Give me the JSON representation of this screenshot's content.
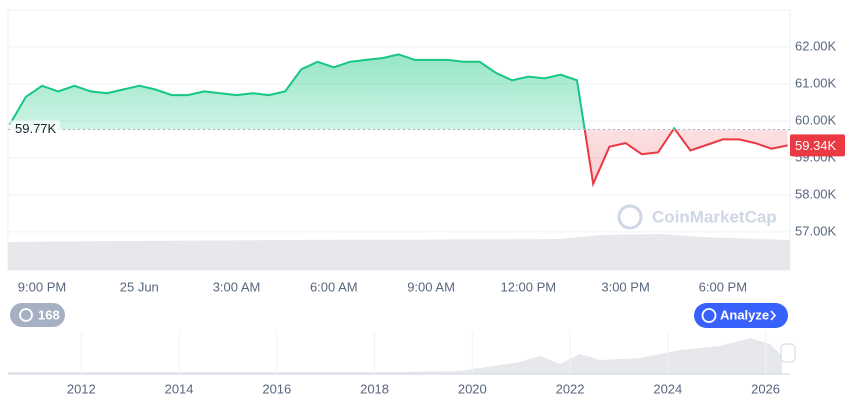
{
  "chart_data": [
    {
      "type": "line",
      "categories": [
        null,
        null,
        "9:00 PM",
        null,
        null,
        null,
        null,
        null,
        "25 Jun",
        null,
        null,
        null,
        null,
        null,
        "3:00 AM",
        null,
        null,
        null,
        null,
        null,
        "6:00 AM",
        null,
        null,
        null,
        null,
        null,
        "9:00 AM",
        null,
        null,
        null,
        null,
        null,
        "12:00 PM",
        null,
        null,
        null,
        null,
        null,
        "3:00 PM",
        null,
        null,
        null,
        null,
        null,
        "6:00 PM",
        null,
        null,
        null,
        null
      ],
      "series": [
        {
          "up_color": "#16c784",
          "down_color": "#ea3943",
          "values": [
            59900,
            60650,
            60950,
            60800,
            60950,
            60800,
            60750,
            60850,
            60950,
            60850,
            60700,
            60700,
            60800,
            60750,
            60700,
            60750,
            60700,
            60800,
            61400,
            61600,
            61450,
            61600,
            61650,
            61700,
            61800,
            61650,
            61650,
            61650,
            61600,
            61600,
            61300,
            61100,
            61200,
            61150,
            61250,
            61100,
            58300,
            59300,
            59400,
            59100,
            59150,
            59800,
            59200,
            59350,
            59500,
            59500,
            59400,
            59250,
            59340
          ]
        }
      ],
      "ylim": [
        55970,
        63000
      ],
      "yticks": [
        {
          "value": 57000,
          "label": "57.00K"
        },
        {
          "value": 58000,
          "label": "58.00K"
        },
        {
          "value": 59000,
          "label": "59.00K"
        },
        {
          "value": 60000,
          "label": "60.00K"
        },
        {
          "value": 61000,
          "label": "61.00K"
        },
        {
          "value": 62000,
          "label": "62.00K"
        }
      ],
      "baseline": {
        "value": 59770,
        "label": "59.77K"
      },
      "current": {
        "value": 59340,
        "label": "59.34K"
      },
      "grid": true
    },
    {
      "type": "area",
      "xlim": [
        2010.5,
        2026.5
      ],
      "xticks": [
        2012,
        2014,
        2016,
        2018,
        2020,
        2022,
        2024,
        2026
      ]
    }
  ],
  "ui": {
    "watermark": "CoinMarketCap",
    "history_count": 168,
    "analyze_button": "Analyze"
  }
}
